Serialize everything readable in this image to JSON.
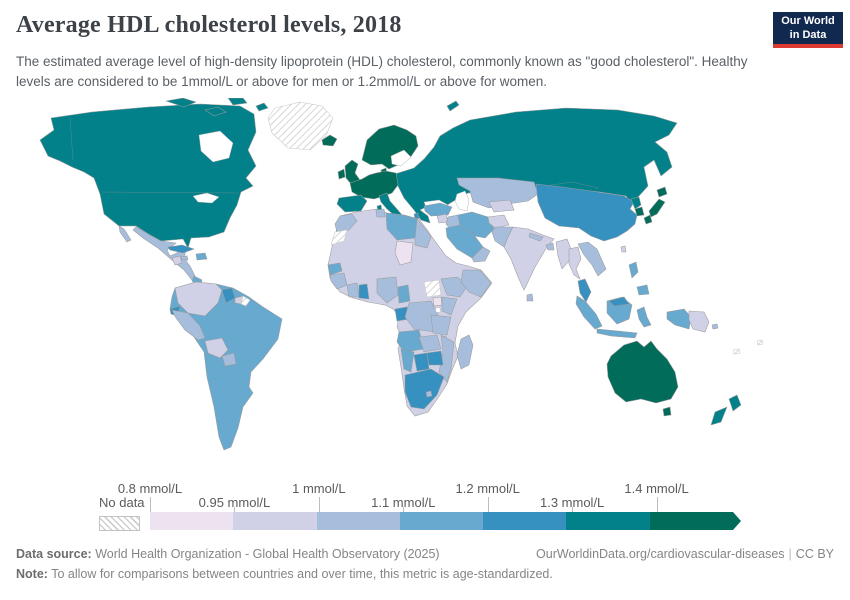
{
  "header": {
    "title": "Average HDL cholesterol levels, 2018",
    "subtitle": "The estimated average level of high-density lipoprotein (HDL) cholesterol, commonly known as \"good cholesterol\". Healthy levels are considered to be 1mmol/L or above for men or 1.2mmol/L or above for women.",
    "logo": {
      "line1": "Our World",
      "line2": "in Data",
      "bg_color": "#12294f",
      "accent_color": "#dc3a32"
    }
  },
  "legend": {
    "no_data_label": "No data",
    "unit": "mmol/L",
    "bins": [
      {
        "range": "0.8–0.95 mmol/L",
        "color": "#ece2f0"
      },
      {
        "range": "0.95–1 mmol/L",
        "color": "#d0d1e6"
      },
      {
        "range": "1–1.1 mmol/L",
        "color": "#a6bddb"
      },
      {
        "range": "1.1–1.2 mmol/L",
        "color": "#67a9cf"
      },
      {
        "range": "1.2–1.3 mmol/L",
        "color": "#3690c0"
      },
      {
        "range": "1.3–1.4 mmol/L",
        "color": "#02818a"
      },
      {
        "range": "≥1.4 mmol/L",
        "color": "#016c59"
      }
    ],
    "tick_labels": [
      {
        "label": "0.8 mmol/L",
        "row": "top",
        "boundary": 0
      },
      {
        "label": "0.95 mmol/L",
        "row": "bottom",
        "boundary": 1
      },
      {
        "label": "1 mmol/L",
        "row": "top",
        "boundary": 2
      },
      {
        "label": "1.1 mmol/L",
        "row": "bottom",
        "boundary": 3
      },
      {
        "label": "1.2 mmol/L",
        "row": "top",
        "boundary": 4
      },
      {
        "label": "1.3 mmol/L",
        "row": "bottom",
        "boundary": 5
      },
      {
        "label": "1.4 mmol/L",
        "row": "top",
        "boundary": 6
      }
    ]
  },
  "chart_data": {
    "type": "choropleth",
    "title": "Average HDL cholesterol levels",
    "year": "2018",
    "unit": "mmol/L",
    "legend_position": "bottom",
    "bin_edges": [
      0.8,
      0.95,
      1,
      1.1,
      1.2,
      1.3,
      1.4
    ],
    "bin_colors": [
      "#ece2f0",
      "#d0d1e6",
      "#a6bddb",
      "#67a9cf",
      "#3690c0",
      "#02818a",
      "#016c59"
    ],
    "no_data_pattern": "diagonal-hatch",
    "regions": [
      {
        "name": "United States",
        "bin": "1.3–1.4"
      },
      {
        "name": "Canada",
        "bin": "1.3–1.4"
      },
      {
        "name": "Russia",
        "bin": "1.3–1.4"
      },
      {
        "name": "Mongolia",
        "bin": "1.3–1.4"
      },
      {
        "name": "Spain",
        "bin": "1.3–1.4"
      },
      {
        "name": "Italy",
        "bin": "1.3–1.4"
      },
      {
        "name": "Poland",
        "bin": "1.3–1.4"
      },
      {
        "name": "Ukraine",
        "bin": "1.3–1.4"
      },
      {
        "name": "Greece",
        "bin": "1.3–1.4"
      },
      {
        "name": "New Zealand",
        "bin": "1.3–1.4"
      },
      {
        "name": "North Korea",
        "bin": "1.3–1.4"
      },
      {
        "name": "France",
        "bin": "≥1.4"
      },
      {
        "name": "Germany",
        "bin": "≥1.4"
      },
      {
        "name": "United Kingdom",
        "bin": "≥1.4"
      },
      {
        "name": "Ireland",
        "bin": "≥1.4"
      },
      {
        "name": "Norway",
        "bin": "≥1.4"
      },
      {
        "name": "Sweden",
        "bin": "≥1.4"
      },
      {
        "name": "Finland",
        "bin": "≥1.4"
      },
      {
        "name": "Iceland",
        "bin": "≥1.4"
      },
      {
        "name": "Japan",
        "bin": "≥1.4"
      },
      {
        "name": "South Korea",
        "bin": "≥1.4"
      },
      {
        "name": "Australia",
        "bin": "≥1.4"
      },
      {
        "name": "China",
        "bin": "1.2–1.3"
      },
      {
        "name": "South Africa",
        "bin": "1.2–1.3"
      },
      {
        "name": "Botswana",
        "bin": "1.2–1.3"
      },
      {
        "name": "Zimbabwe",
        "bin": "1.2–1.3"
      },
      {
        "name": "Ghana",
        "bin": "1.2–1.3"
      },
      {
        "name": "Malaysia",
        "bin": "1.2–1.3"
      },
      {
        "name": "Guyana",
        "bin": "1.2–1.3"
      },
      {
        "name": "Cuba",
        "bin": "1.2–1.3"
      },
      {
        "name": "Ecuador",
        "bin": "1.2–1.3"
      },
      {
        "name": "Brazil",
        "bin": "1.1–1.2"
      },
      {
        "name": "Argentina",
        "bin": "1.1–1.2"
      },
      {
        "name": "Chile",
        "bin": "1.1–1.2"
      },
      {
        "name": "Turkey",
        "bin": "1.1–1.2"
      },
      {
        "name": "Iran",
        "bin": "1.1–1.2"
      },
      {
        "name": "Saudi Arabia",
        "bin": "1.1–1.2"
      },
      {
        "name": "Libya",
        "bin": "1.1–1.2"
      },
      {
        "name": "Indonesia",
        "bin": "1.1–1.2"
      },
      {
        "name": "Philippines",
        "bin": "1.1–1.2"
      },
      {
        "name": "Angola",
        "bin": "1.1–1.2"
      },
      {
        "name": "Namibia",
        "bin": "1.1–1.2"
      },
      {
        "name": "Senegal",
        "bin": "1.1–1.2"
      },
      {
        "name": "Cameroon",
        "bin": "1.1–1.2"
      },
      {
        "name": "Mexico",
        "bin": "1–1.1"
      },
      {
        "name": "Peru",
        "bin": "1–1.1"
      },
      {
        "name": "Kazakhstan",
        "bin": "1–1.1"
      },
      {
        "name": "Pakistan",
        "bin": "1–1.1"
      },
      {
        "name": "Egypt",
        "bin": "1–1.1"
      },
      {
        "name": "Morocco",
        "bin": "1–1.1"
      },
      {
        "name": "Nigeria",
        "bin": "1–1.1"
      },
      {
        "name": "Ethiopia",
        "bin": "1–1.1"
      },
      {
        "name": "Kenya",
        "bin": "1–1.1"
      },
      {
        "name": "Tanzania",
        "bin": "1–1.1"
      },
      {
        "name": "Mozambique",
        "bin": "1–1.1"
      },
      {
        "name": "Madagascar",
        "bin": "1–1.1"
      },
      {
        "name": "Vietnam",
        "bin": "1–1.1"
      },
      {
        "name": "India",
        "bin": "0.95–1"
      },
      {
        "name": "Colombia",
        "bin": "0.95–1"
      },
      {
        "name": "Venezuela",
        "bin": "0.95–1"
      },
      {
        "name": "Bolivia",
        "bin": "0.95–1"
      },
      {
        "name": "Afghanistan",
        "bin": "0.95–1"
      },
      {
        "name": "Algeria",
        "bin": "0.95–1"
      },
      {
        "name": "Mali",
        "bin": "0.95–1"
      },
      {
        "name": "Niger",
        "bin": "0.95–1"
      },
      {
        "name": "Sudan",
        "bin": "0.95–1"
      },
      {
        "name": "Myanmar",
        "bin": "0.95–1"
      },
      {
        "name": "Thailand",
        "bin": "0.95–1"
      },
      {
        "name": "Papua New Guinea",
        "bin": "0.95–1"
      },
      {
        "name": "Chad",
        "bin": "0.8–0.95"
      },
      {
        "name": "Uganda",
        "bin": "0.8–0.95"
      },
      {
        "name": "Malawi",
        "bin": "0.8–0.95"
      },
      {
        "name": "Greenland",
        "bin": "No data"
      },
      {
        "name": "Western Sahara",
        "bin": "No data"
      },
      {
        "name": "South Sudan",
        "bin": "No data"
      },
      {
        "name": "French Guiana",
        "bin": "No data"
      }
    ]
  },
  "footer": {
    "source_label": "Data source:",
    "source_text": " World Health Organization - Global Health Observatory (2025)",
    "url": "OurWorldinData.org/cardiovascular-diseases",
    "license": "CC BY",
    "note_label": "Note:",
    "note_text": " To allow for comparisons between countries and over time, this metric is age-standardized."
  }
}
